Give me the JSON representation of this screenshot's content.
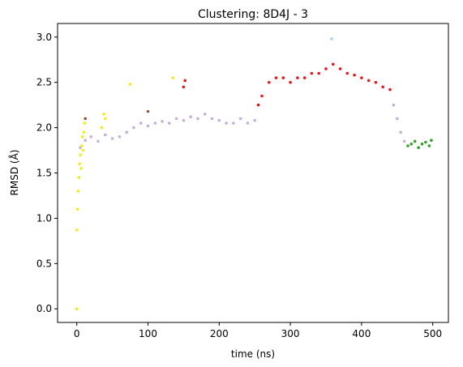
{
  "chart_data": {
    "type": "scatter",
    "title": "Clustering: 8D4J - 3",
    "xlabel": "time (ns)",
    "ylabel": "RMSD (Å)",
    "xlim": [
      -27,
      522
    ],
    "ylim": [
      -0.15,
      3.15
    ],
    "xticks": [
      0,
      100,
      200,
      300,
      400,
      500
    ],
    "yticks": [
      0.0,
      0.5,
      1.0,
      1.5,
      2.0,
      2.5,
      3.0
    ],
    "xtick_labels": [
      "0",
      "100",
      "200",
      "300",
      "400",
      "500"
    ],
    "ytick_labels": [
      "0.0",
      "0.5",
      "1.0",
      "1.5",
      "2.0",
      "2.5",
      "3.0"
    ],
    "grid": false,
    "legend": null,
    "series": [
      {
        "color": "#c5b0d5",
        "points": [
          [
            5,
            1.78
          ],
          [
            12,
            1.86
          ],
          [
            20,
            1.9
          ],
          [
            30,
            1.85
          ],
          [
            40,
            1.92
          ],
          [
            50,
            1.88
          ],
          [
            60,
            1.9
          ],
          [
            70,
            1.95
          ],
          [
            80,
            2.0
          ],
          [
            90,
            2.05
          ],
          [
            100,
            2.02
          ],
          [
            110,
            2.05
          ],
          [
            120,
            2.07
          ],
          [
            130,
            2.05
          ],
          [
            140,
            2.1
          ],
          [
            150,
            2.08
          ],
          [
            160,
            2.12
          ],
          [
            170,
            2.1
          ],
          [
            180,
            2.15
          ],
          [
            190,
            2.1
          ],
          [
            200,
            2.08
          ],
          [
            210,
            2.05
          ],
          [
            220,
            2.05
          ],
          [
            230,
            2.1
          ],
          [
            240,
            2.05
          ],
          [
            250,
            2.08
          ],
          [
            445,
            2.25
          ],
          [
            450,
            2.1
          ],
          [
            455,
            1.95
          ],
          [
            460,
            1.85
          ]
        ]
      },
      {
        "color": "#e31a1c",
        "points": [
          [
            255,
            2.25
          ],
          [
            260,
            2.35
          ],
          [
            270,
            2.5
          ],
          [
            280,
            2.55
          ],
          [
            290,
            2.55
          ],
          [
            300,
            2.5
          ],
          [
            310,
            2.55
          ],
          [
            320,
            2.55
          ],
          [
            330,
            2.6
          ],
          [
            340,
            2.6
          ],
          [
            350,
            2.65
          ],
          [
            360,
            2.7
          ],
          [
            370,
            2.65
          ],
          [
            380,
            2.6
          ],
          [
            390,
            2.58
          ],
          [
            400,
            2.55
          ],
          [
            410,
            2.52
          ],
          [
            420,
            2.5
          ],
          [
            430,
            2.45
          ],
          [
            440,
            2.42
          ],
          [
            150,
            2.45
          ],
          [
            152,
            2.52
          ]
        ]
      },
      {
        "color": "#33a02c",
        "points": [
          [
            465,
            1.8
          ],
          [
            470,
            1.82
          ],
          [
            475,
            1.85
          ],
          [
            480,
            1.78
          ],
          [
            485,
            1.82
          ],
          [
            490,
            1.84
          ],
          [
            495,
            1.8
          ],
          [
            498,
            1.86
          ]
        ]
      },
      {
        "color": "#eded1f",
        "points": [
          [
            0,
            0.0
          ],
          [
            0,
            0.87
          ],
          [
            1,
            1.1
          ],
          [
            2,
            1.3
          ],
          [
            3,
            1.45
          ],
          [
            4,
            1.6
          ],
          [
            5,
            1.7
          ],
          [
            6,
            1.55
          ],
          [
            7,
            1.8
          ],
          [
            8,
            1.9
          ],
          [
            9,
            1.75
          ],
          [
            10,
            1.95
          ],
          [
            11,
            2.05
          ],
          [
            12,
            2.1
          ],
          [
            35,
            2.0
          ],
          [
            38,
            2.15
          ],
          [
            40,
            2.1
          ],
          [
            75,
            2.48
          ],
          [
            135,
            2.55
          ]
        ]
      },
      {
        "color": "#a6cee3",
        "points": [
          [
            358,
            2.98
          ]
        ]
      },
      {
        "color": "#8c564b",
        "points": [
          [
            12,
            2.1
          ],
          [
            100,
            2.18
          ]
        ]
      }
    ]
  }
}
